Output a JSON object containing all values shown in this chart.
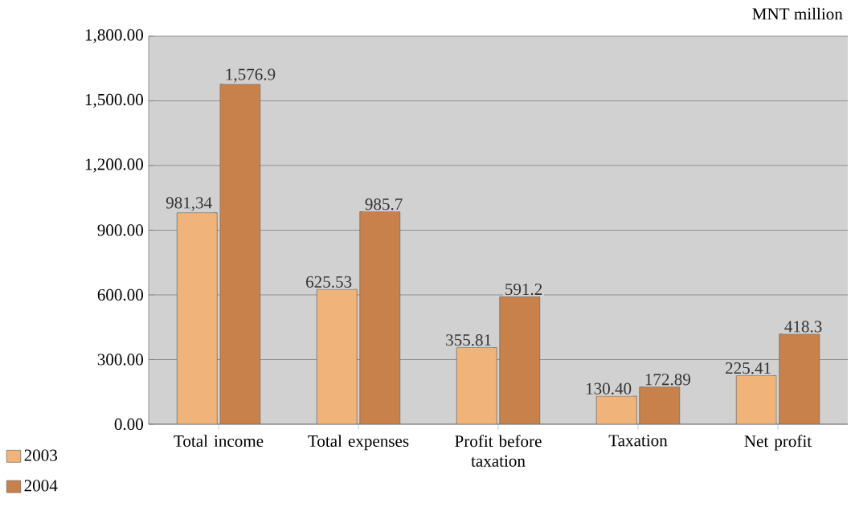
{
  "chart_data": {
    "type": "bar",
    "categories": [
      "Total income",
      "Total expenses",
      "Profit before taxation",
      "Taxation",
      "Net profit"
    ],
    "series": [
      {
        "name": "2003",
        "color": "#f0b47a",
        "values": [
          981.34,
          625.53,
          355.81,
          130.4,
          225.41
        ],
        "value_labels": [
          "981,34",
          "625.53",
          "355.81",
          "130.40",
          "225.41"
        ]
      },
      {
        "name": "2004",
        "color": "#c8814a",
        "values": [
          1576.9,
          985.7,
          591.2,
          172.89,
          418.3
        ],
        "value_labels": [
          "1,576.9",
          "985.7",
          "591.2",
          "172.89",
          "418.3"
        ]
      }
    ],
    "ylim": [
      0,
      1800
    ],
    "yticks": [
      {
        "value": 0,
        "label": "0.00"
      },
      {
        "value": 300,
        "label": "300.00"
      },
      {
        "value": 600,
        "label": "600.00"
      },
      {
        "value": 900,
        "label": "900.00"
      },
      {
        "value": 1200,
        "label": "1,200.00"
      },
      {
        "value": 1500,
        "label": "1,500.00"
      },
      {
        "value": 1800,
        "label": "1,800.00"
      }
    ],
    "grid": "y",
    "legend": "bottom left",
    "annotations": [
      "MNT million"
    ]
  }
}
